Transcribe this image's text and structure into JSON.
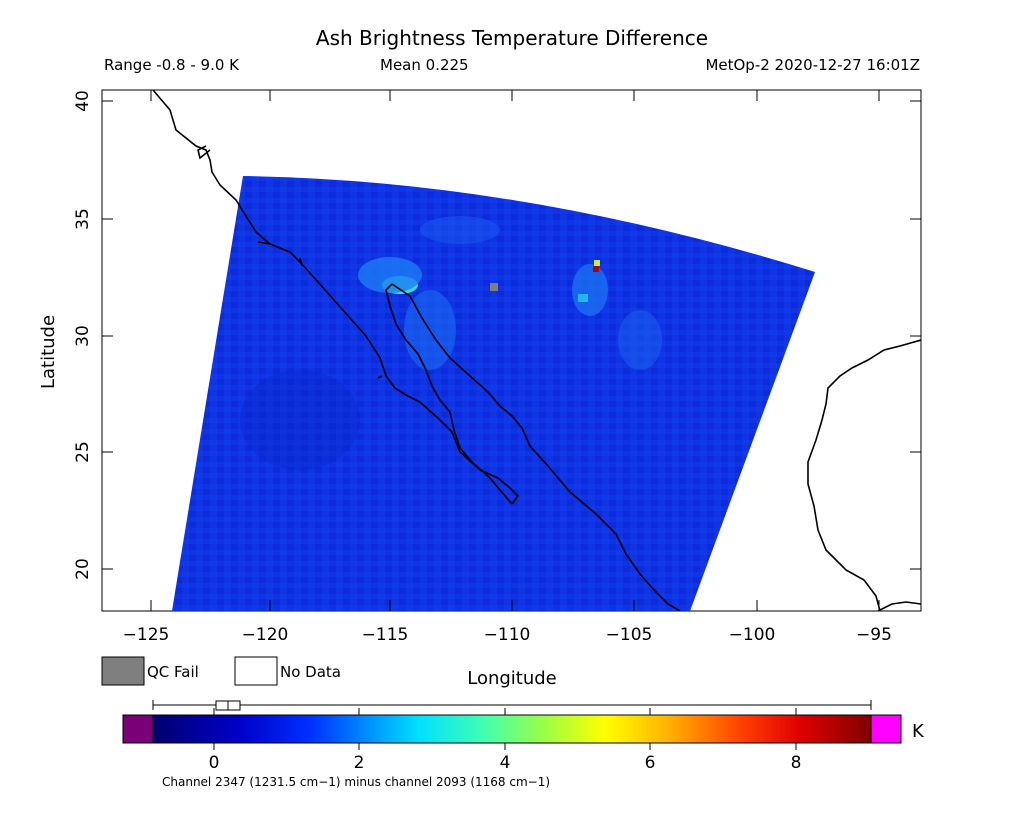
{
  "header": {
    "title": "Ash Brightness Temperature Difference",
    "range": "Range -0.8 - 9.0 K",
    "mean": "Mean 0.225",
    "satellite_time": "MetOp-2 2020-12-27 16:01Z"
  },
  "axes": {
    "xlabel": "Longitude",
    "ylabel": "Latitude",
    "xticks": [
      "−125",
      "−120",
      "−115",
      "−110",
      "−105",
      "−100",
      "−95"
    ],
    "yticks": [
      "40",
      "35",
      "30",
      "25",
      "20"
    ]
  },
  "legend": {
    "qc_fail": "QC Fail",
    "no_data": "No Data",
    "qc_fail_color": "#7f7f7f",
    "no_data_color": "#ffffff"
  },
  "colorbar": {
    "ticks": [
      "0",
      "2",
      "4",
      "6",
      "8"
    ],
    "unit": "K",
    "caption": "Channel 2347 (1231.5 cm−1) minus channel 2093 (1168 cm−1)",
    "below_color": "#7a007a",
    "above_color": "#ff00ff",
    "min": -0.8,
    "max": 9.0
  },
  "map_data": {
    "lon_range": [
      -126.5,
      -93
    ],
    "lat_range": [
      18,
      40.5
    ],
    "dominant_color": "#0a2ee8",
    "hotspot_color": "#b00000",
    "ash_feature_color": "#2fe0d8"
  }
}
